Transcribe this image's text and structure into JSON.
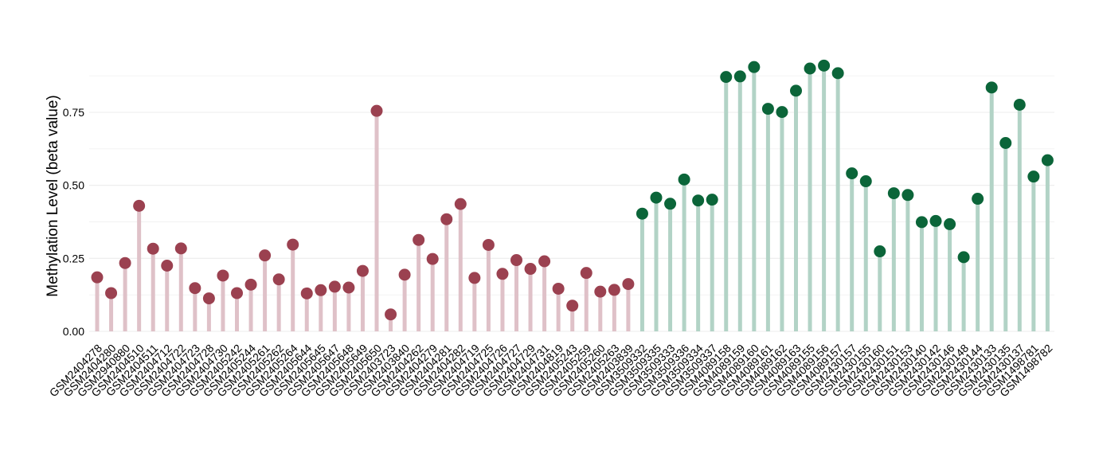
{
  "chart_data": {
    "type": "lollipop",
    "ylabel": "Methylation Level (beta value)",
    "xlabel": "",
    "title": "",
    "ylim": [
      0,
      0.9
    ],
    "yticks": [
      0.0,
      0.25,
      0.5,
      0.75
    ],
    "ytick_labels": [
      "0.00",
      "0.25",
      "0.50",
      "0.75"
    ],
    "grid": true,
    "legend": "none",
    "colors": {
      "group1_point": "#9b4150",
      "group1_stem": "#dfc1c8",
      "group2_point": "#0b6539",
      "group2_stem": "#b2d3c6",
      "grid": "#ececec"
    },
    "categories": [
      "GSM2404278",
      "GSM2404280",
      "GSM2940880",
      "GSM2404510",
      "GSM2404511",
      "GSM2404712",
      "GSM2404722",
      "GSM2404723",
      "GSM2404728",
      "GSM2404730",
      "GSM2405242",
      "GSM2405244",
      "GSM2405261",
      "GSM2405262",
      "GSM2405264",
      "GSM2405644",
      "GSM2405645",
      "GSM2405647",
      "GSM2405648",
      "GSM2405649",
      "GSM2405650",
      "GSM2403723",
      "GSM2403840",
      "GSM2404262",
      "GSM2404279",
      "GSM2404281",
      "GSM2404282",
      "GSM2404719",
      "GSM2404725",
      "GSM2404726",
      "GSM2404727",
      "GSM2404729",
      "GSM2404731",
      "GSM2404819",
      "GSM2405243",
      "GSM2405259",
      "GSM2405260",
      "GSM2405263",
      "GSM2403839",
      "GSM3509332",
      "GSM3509335",
      "GSM3509333",
      "GSM3509336",
      "GSM3509334",
      "GSM3509337",
      "GSM4089158",
      "GSM4089159",
      "GSM4089160",
      "GSM4089161",
      "GSM4089162",
      "GSM4089163",
      "GSM4089155",
      "GSM4089156",
      "GSM4089157",
      "GSM2430157",
      "GSM2430155",
      "GSM2430160",
      "GSM2430151",
      "GSM2430153",
      "GSM2430140",
      "GSM2430142",
      "GSM2430146",
      "GSM2430148",
      "GSM2430144",
      "GSM2430133",
      "GSM2430135",
      "GSM2430137",
      "GSM1498781",
      "GSM1498782"
    ],
    "values": [
      0.185,
      0.131,
      0.234,
      0.43,
      0.283,
      0.225,
      0.284,
      0.148,
      0.113,
      0.191,
      0.131,
      0.16,
      0.26,
      0.178,
      0.297,
      0.13,
      0.141,
      0.153,
      0.15,
      0.207,
      0.755,
      0.058,
      0.194,
      0.313,
      0.248,
      0.384,
      0.436,
      0.183,
      0.296,
      0.197,
      0.244,
      0.214,
      0.24,
      0.146,
      0.088,
      0.2,
      0.136,
      0.142,
      0.162,
      0.403,
      0.458,
      0.437,
      0.52,
      0.448,
      0.451,
      0.871,
      0.873,
      0.905,
      0.762,
      0.751,
      0.824,
      0.9,
      0.91,
      0.884,
      0.541,
      0.514,
      0.274,
      0.473,
      0.467,
      0.374,
      0.378,
      0.367,
      0.254,
      0.454,
      0.835,
      0.645,
      0.776,
      0.53,
      0.586
    ],
    "group_of_points": [
      "g1",
      "g1",
      "g1",
      "g1",
      "g1",
      "g1",
      "g1",
      "g1",
      "g1",
      "g1",
      "g1",
      "g1",
      "g1",
      "g1",
      "g1",
      "g1",
      "g1",
      "g1",
      "g1",
      "g1",
      "g1",
      "g1",
      "g1",
      "g1",
      "g1",
      "g1",
      "g1",
      "g1",
      "g1",
      "g1",
      "g1",
      "g1",
      "g1",
      "g1",
      "g1",
      "g1",
      "g1",
      "g1",
      "g1",
      "g2",
      "g2",
      "g2",
      "g2",
      "g2",
      "g2",
      "g2",
      "g2",
      "g2",
      "g2",
      "g2",
      "g2",
      "g2",
      "g2",
      "g2",
      "g2",
      "g2",
      "g2",
      "g2",
      "g2",
      "g2",
      "g2",
      "g2",
      "g2",
      "g2",
      "g2",
      "g2",
      "g2",
      "g2",
      "g2"
    ]
  }
}
